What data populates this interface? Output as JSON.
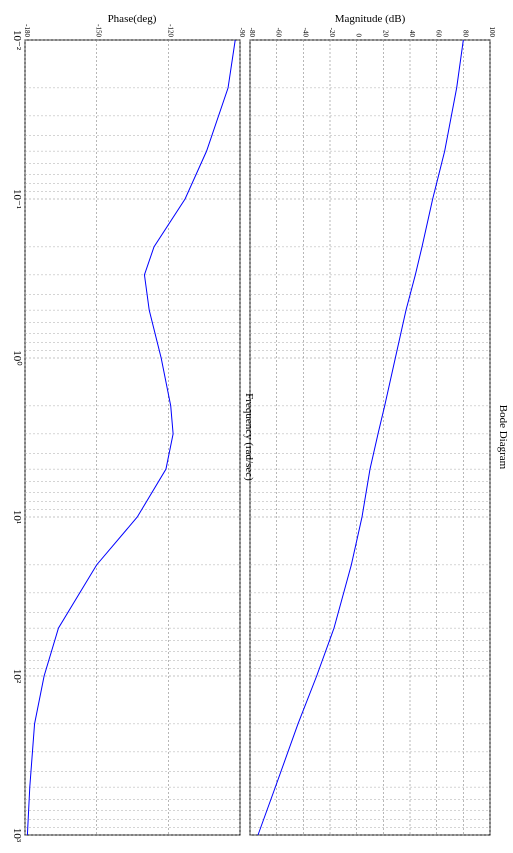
{
  "chart_data": [
    {
      "type": "line",
      "title": "Bode Diagram",
      "ylabel": "Magnitude (dB)",
      "log_x": true,
      "grid": true,
      "x": [
        0.01,
        0.02,
        0.05,
        0.1,
        0.2,
        0.3,
        0.5,
        1,
        2,
        3,
        5,
        10,
        20,
        50,
        100,
        200,
        500,
        1000
      ],
      "series": [
        {
          "name": "Magnitude",
          "color": "#0000ff",
          "values": [
            80,
            75,
            66,
            57,
            49,
            44,
            37,
            29,
            21,
            16,
            10,
            4,
            -4,
            -17,
            -30,
            -44,
            -61,
            -74
          ]
        }
      ],
      "xlim": [
        0.01,
        1000
      ],
      "xticks": [
        0.01,
        0.1,
        1,
        10,
        100,
        1000
      ],
      "ylim": [
        -80,
        100
      ],
      "yticks": [
        -80,
        -60,
        -40,
        -20,
        0,
        20,
        40,
        60,
        80,
        100
      ]
    },
    {
      "type": "line",
      "ylabel": "Phase(deg)",
      "xlabel": "Frequency (rad/sec)",
      "log_x": true,
      "grid": true,
      "x": [
        0.01,
        0.02,
        0.05,
        0.1,
        0.2,
        0.3,
        0.5,
        1,
        2,
        3,
        5,
        10,
        20,
        50,
        100,
        200,
        500,
        1000
      ],
      "series": [
        {
          "name": "Phase",
          "color": "#0000ff",
          "values": [
            -92,
            -95,
            -104,
            -113,
            -126,
            -130,
            -128,
            -123,
            -119,
            -118,
            -121,
            -133,
            -150,
            -166,
            -172,
            -176,
            -178,
            -179
          ]
        }
      ],
      "xlim": [
        0.01,
        1000
      ],
      "xticks": [
        {
          "value": 0.01,
          "label": "10⁻²"
        },
        {
          "value": 0.1,
          "label": "10⁻¹"
        },
        {
          "value": 1,
          "label": "10⁰"
        },
        {
          "value": 10,
          "label": "10¹"
        },
        {
          "value": 100,
          "label": "10²"
        },
        {
          "value": 1000,
          "label": "10³"
        }
      ],
      "ylim": [
        -180,
        -90
      ],
      "yticks": [
        -180,
        -150,
        -120,
        -90
      ]
    }
  ]
}
